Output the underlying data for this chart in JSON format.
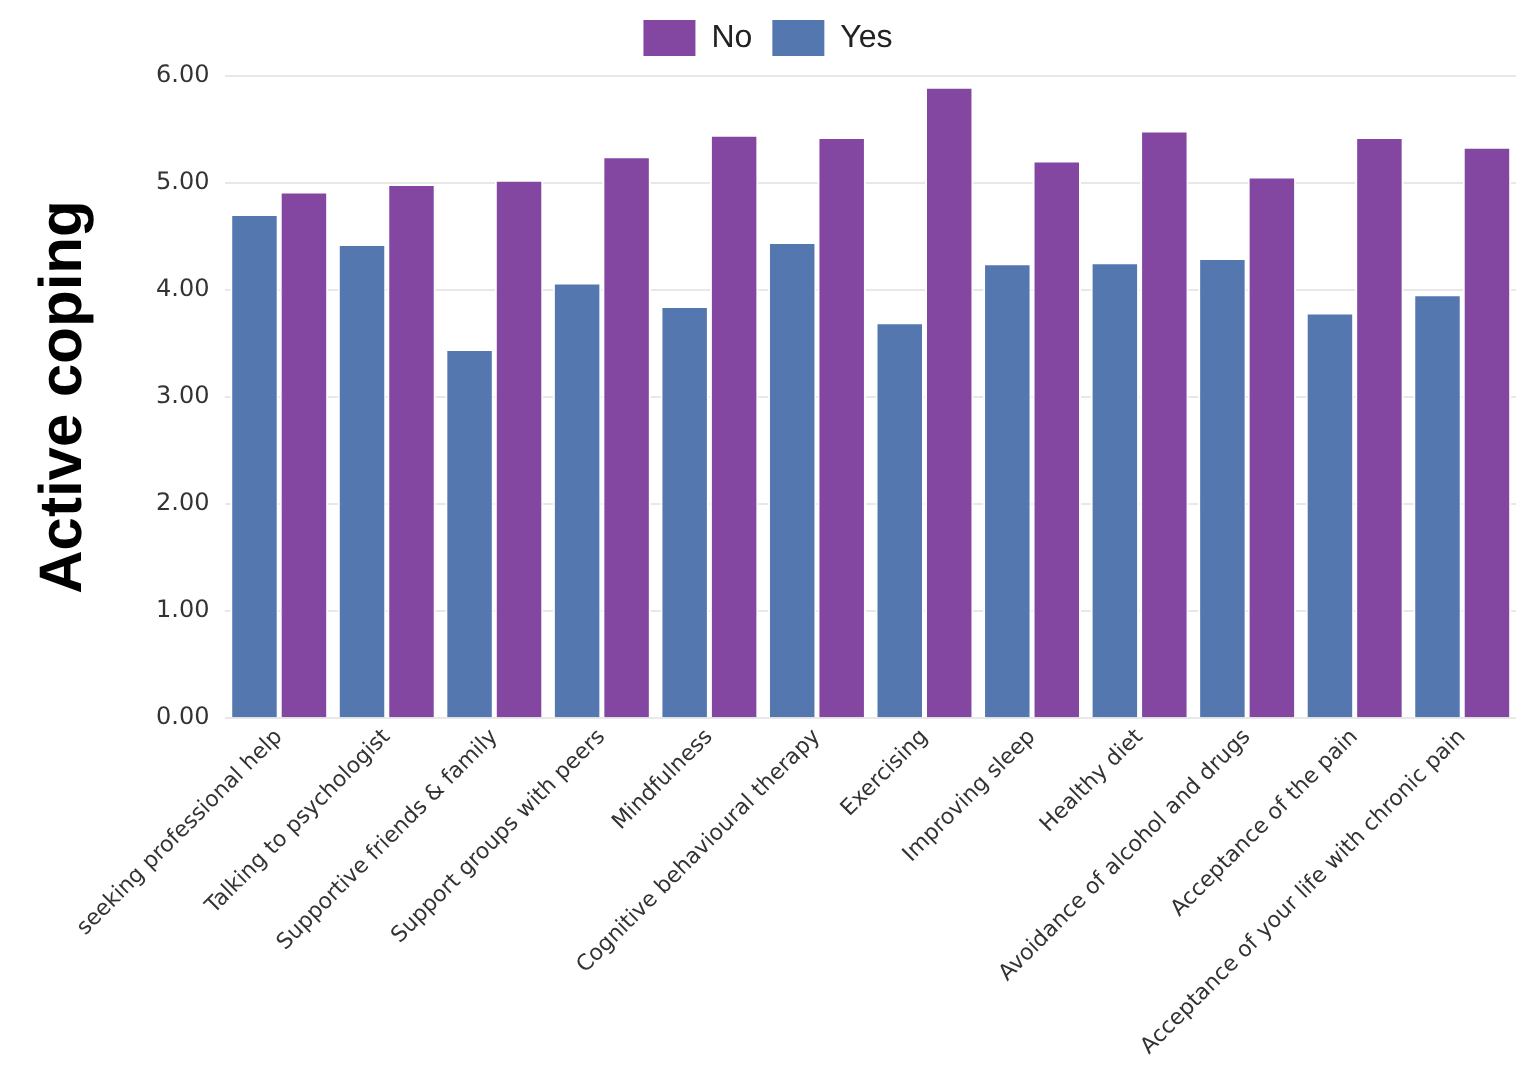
{
  "chart_data": {
    "type": "bar",
    "ylabel": "Active coping",
    "categories": [
      "seeking professional help",
      "Talking to psychologist",
      "Supportive friends & family",
      "Support groups with peers",
      "Mindfulness",
      "Cognitive behavioural therapy",
      "Exercising",
      "Improving sleep",
      "Healthy diet",
      "Avoidance of alcohol and drugs",
      "Acceptance of the pain",
      "Acceptance of your life with chronic pain"
    ],
    "series": [
      {
        "name": "No",
        "color": "#8447a1",
        "values": [
          4.92,
          4.99,
          5.03,
          5.25,
          5.45,
          5.43,
          5.9,
          5.21,
          5.49,
          5.06,
          5.43,
          5.34
        ]
      },
      {
        "name": "Yes",
        "color": "#5577b0",
        "values": [
          4.71,
          4.43,
          3.45,
          4.07,
          3.85,
          4.45,
          3.7,
          4.25,
          4.26,
          4.3,
          3.79,
          3.96
        ]
      }
    ],
    "ylim": [
      0,
      6
    ],
    "yticks": [
      {
        "value": 0,
        "label": "0.00"
      },
      {
        "value": 1,
        "label": "1.00"
      },
      {
        "value": 2,
        "label": "2.00"
      },
      {
        "value": 3,
        "label": "3.00"
      },
      {
        "value": 4,
        "label": "4.00"
      },
      {
        "value": 5,
        "label": "5.00"
      },
      {
        "value": 6,
        "label": "6.00"
      }
    ],
    "grid": "y",
    "legend": "top"
  }
}
